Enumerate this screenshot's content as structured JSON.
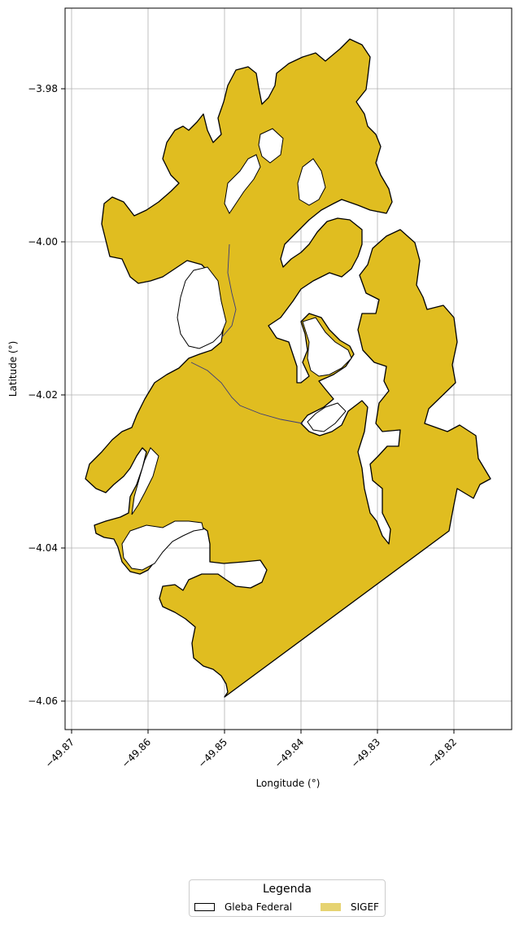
{
  "map": {
    "xlabel": "Longitude (°)",
    "ylabel": "Latitude (°)",
    "x_ticks": [
      "−49.87",
      "−49.86",
      "−49.85",
      "−49.84",
      "−49.83",
      "−49.82"
    ],
    "y_ticks": [
      "−3.98",
      "−4.00",
      "−4.02",
      "−4.04",
      "−4.06"
    ],
    "grid": true,
    "colors": {
      "sigef_fill": "#e0bd20",
      "gleba_outline": "#000000",
      "grid": "#b0b0b0",
      "legend_sigef_swatch": "#e6d372"
    }
  },
  "legend": {
    "title": "Legenda",
    "items": [
      {
        "label": "Gleba Federal",
        "style": "outline"
      },
      {
        "label": "SIGEF",
        "style": "fill"
      }
    ],
    "placement": "bottom-center"
  }
}
